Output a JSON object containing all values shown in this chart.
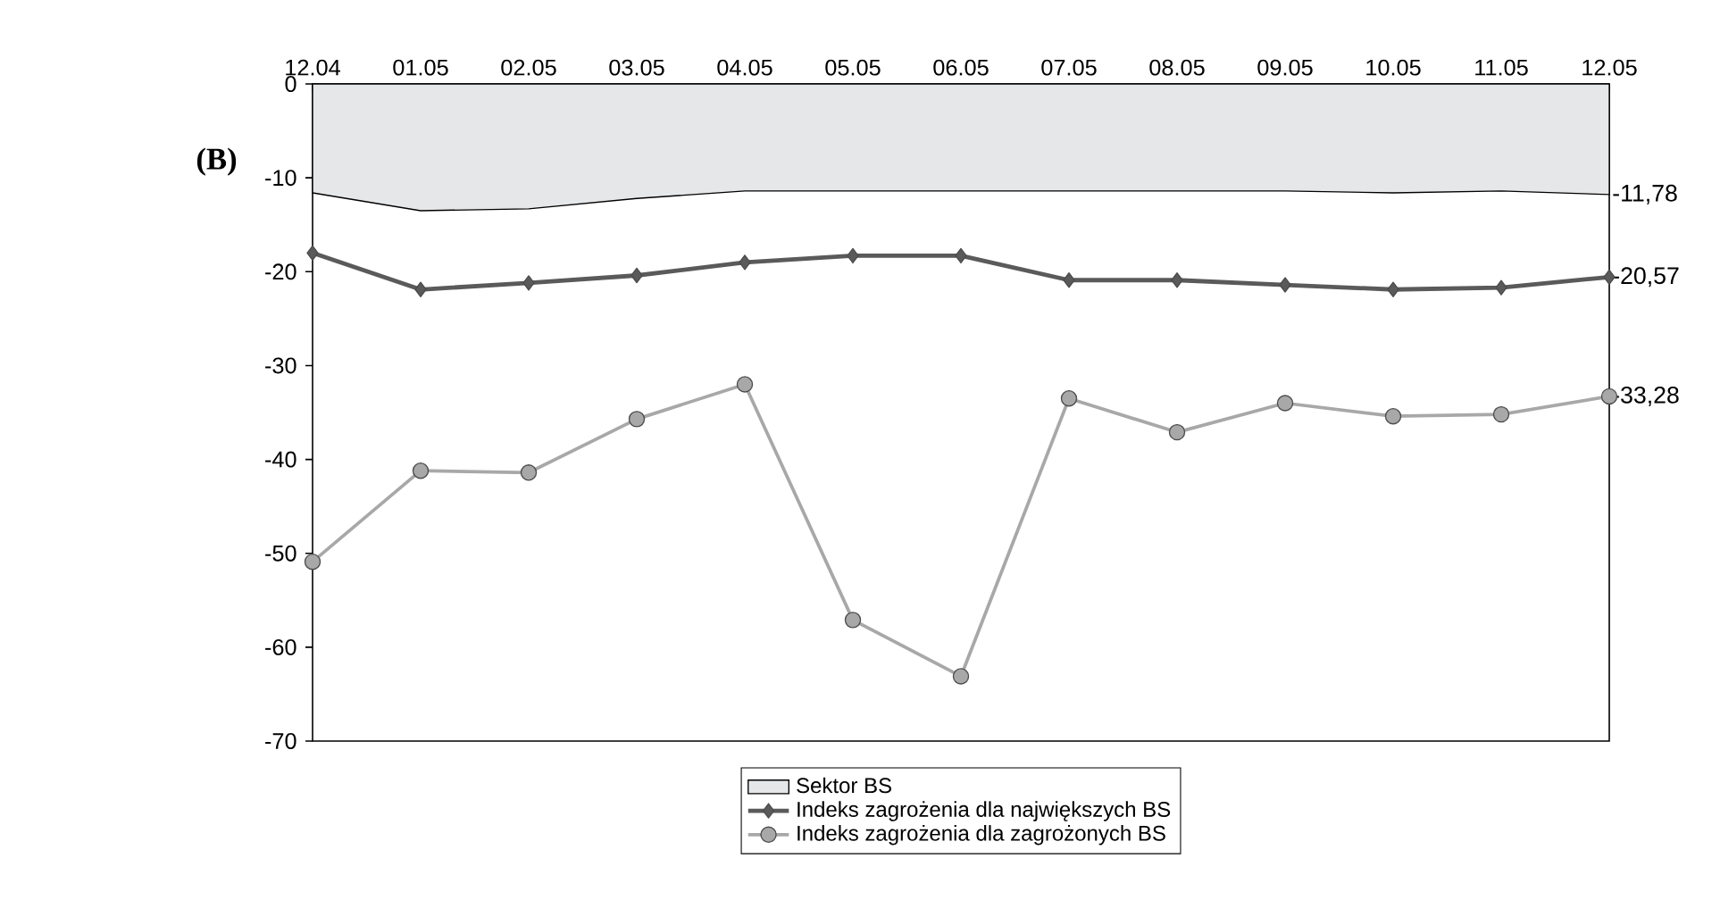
{
  "chart_data": {
    "type": "line",
    "categories": [
      "12.04",
      "01.05",
      "02.05",
      "03.05",
      "04.05",
      "05.05",
      "06.05",
      "07.05",
      "08.05",
      "09.05",
      "10.05",
      "11.05",
      "12.05"
    ],
    "series": [
      {
        "name": "Sektor BS",
        "type": "area",
        "color": "#e6e7e9",
        "marker": "none",
        "values": [
          -11.6,
          -13.5,
          -13.3,
          -12.2,
          -11.4,
          -11.4,
          -11.4,
          -11.4,
          -11.4,
          -11.4,
          -11.6,
          -11.4,
          -11.78
        ],
        "value_labels": [
          null,
          null,
          null,
          null,
          null,
          null,
          null,
          null,
          null,
          null,
          null,
          null,
          "-11,78"
        ]
      },
      {
        "name": "Indeks zagrożenia dla największych BS",
        "color": "#5a5a5a",
        "marker": "diamond",
        "values": [
          -18.0,
          -21.9,
          -21.2,
          -20.4,
          -19.0,
          -18.3,
          -18.3,
          -20.9,
          -20.9,
          -21.4,
          -21.9,
          -21.7,
          -20.57
        ],
        "value_labels": [
          null,
          null,
          null,
          null,
          null,
          null,
          null,
          null,
          null,
          null,
          null,
          null,
          "-20,57"
        ]
      },
      {
        "name": "Indeks zagrożenia dla zagrożonych BS",
        "color": "#a8a8a8",
        "marker": "circle",
        "values": [
          -50.9,
          -41.2,
          -41.4,
          -35.7,
          -32.0,
          -57.1,
          -63.1,
          -33.5,
          -37.1,
          -34.0,
          -35.4,
          -35.2,
          -33.28
        ],
        "value_labels": [
          null,
          null,
          null,
          null,
          null,
          null,
          null,
          null,
          null,
          null,
          null,
          null,
          "-33,28"
        ]
      }
    ],
    "ylim": [
      -70,
      0
    ],
    "yticks": [
      -70,
      -60,
      -50,
      -40,
      -30,
      -20,
      -10,
      0
    ],
    "legend": "bottom",
    "grid": false,
    "annotations": [
      "(B)"
    ]
  }
}
